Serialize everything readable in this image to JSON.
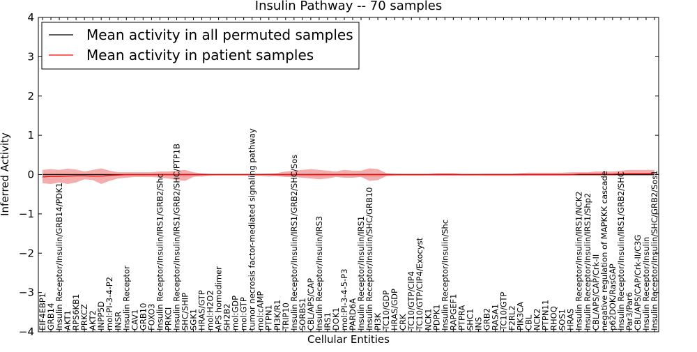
{
  "chart_data": {
    "type": "line",
    "title": "Insulin Pathway -- 70 samples",
    "xlabel": "Cellular Entities",
    "ylabel": "Inferred Activity",
    "ylim": [
      -4,
      4
    ],
    "yticks": [
      "−4",
      "−3",
      "−2",
      "−1",
      "0",
      "1",
      "2",
      "3",
      "4"
    ],
    "grid": false,
    "legend_position": "top-left",
    "legend": [
      {
        "label": "Mean activity in all permuted samples",
        "color": "#000000"
      },
      {
        "label": "Mean activity in patient samples",
        "color": "#ff0000"
      }
    ],
    "colors": {
      "patient_line": "#ff0000",
      "patient_band": "#f08080",
      "permuted_line": "#000000",
      "permuted_band": "#c0c0c0"
    },
    "categories": [
      "EIF4EBP1",
      "GRB14",
      "Insulin Receptor/Insulin/GRB14/PDK1",
      "AKT1",
      "RPS6KB1",
      "PRKCZ",
      "AKT2",
      "INPP5D",
      "mol:PI-3-4-P2",
      "INSR",
      "Insulin Receptor",
      "CAV1",
      "GRB10",
      "FOXO3",
      "Insulin Receptor/Insulin/IRS1/GRB2/Shc",
      "PRKCI",
      "Insulin Receptor/Insulin/IRS1/GRB2/SHC/PTP1B",
      "SHC/SHIP",
      "SGK1",
      "HRAS/GTP",
      "mol:H2O2",
      "APS homodimer",
      "SH2B2",
      "mol:GDP",
      "mol:GTP",
      "tumor necrosis factor-mediated signaling pathway",
      "mol:cAMP",
      "PTPN1",
      "PI3K/R1",
      "TRIP10",
      "Insulin Receptor/Insulin/IRS1/GRB2/SHC/Sos",
      "SORBS1",
      "CBL/APS/CAP",
      "Insulin Receptor/Insulin/IRS3",
      "IRS1",
      "DOK1",
      "mol:PI-3-4-5-P3",
      "PARD6A",
      "Insulin Receptor/Insulin/IRS1",
      "Insulin Receptor/Insulin/SHC/GRB10",
      "PI3K",
      "TC10/GDP",
      "HRAS/GDP",
      "CRK",
      "TC10/GTP/CIP4",
      "TC10/GTP/CIP4/Exocyst",
      "NCK1",
      "PDPK1",
      "Insulin Receptor/Insulin/Shc",
      "RAPGEF1",
      "PTPRA",
      "SHC1",
      "INS",
      "GRB2",
      "RASA1",
      "TC10/GTP",
      "F2RL2",
      "PIK3CA",
      "CBL",
      "NCK2",
      "PTPN11",
      "RHOQ",
      "SOS1",
      "HRAS",
      "Insulin Receptor/Insulin/IRS1/NCK2",
      "Insulin Receptor/Insulin/IRS1/Shp2",
      "CBL/APS/CAP/Crk-II",
      "negative regulation of MAPKKK cascade",
      "p62DOK/RasGAP",
      "Insulin Receptor/Insulin/IRS1/GRB2/SHC",
      "Par3/Par6",
      "CBL/APS/CAP/Crk-II/C3G",
      "Insulin Receptor/Insulin",
      "Insulin Receptor/Insulin/SHC/GRB2/Sos1"
    ],
    "series": [
      {
        "name": "Mean activity in patient samples",
        "values": [
          -0.06,
          -0.05,
          -0.05,
          -0.04,
          -0.03,
          -0.03,
          -0.04,
          -0.04,
          -0.02,
          -0.01,
          0.0,
          0.0,
          0.0,
          0.0,
          0.0,
          0.0,
          0.0,
          0.0,
          0.0,
          0.0,
          0.0,
          0.0,
          0.0,
          0.0,
          0.0,
          0.0,
          0.0,
          0.0,
          0.0,
          0.0,
          0.0,
          0.0,
          0.0,
          0.0,
          0.0,
          0.0,
          0.0,
          0.0,
          0.0,
          0.0,
          0.0,
          0.0,
          0.0,
          0.0,
          0.0,
          0.0,
          0.0,
          0.0,
          0.0,
          0.0,
          0.0,
          0.0,
          0.0,
          0.0,
          0.0,
          0.0,
          0.0,
          0.0,
          0.0,
          0.0,
          0.0,
          0.0,
          0.0,
          0.0,
          0.01,
          0.01,
          0.01,
          0.01,
          0.01,
          0.02,
          0.03,
          0.03,
          0.03,
          0.04
        ],
        "lower": [
          -0.22,
          -0.24,
          -0.2,
          -0.24,
          -0.2,
          -0.12,
          -0.14,
          -0.24,
          -0.16,
          -0.1,
          -0.08,
          -0.06,
          -0.06,
          -0.06,
          -0.08,
          -0.1,
          -0.14,
          -0.16,
          -0.06,
          -0.03,
          -0.02,
          -0.02,
          -0.02,
          -0.02,
          -0.02,
          -0.02,
          -0.02,
          -0.02,
          -0.04,
          -0.06,
          -0.06,
          -0.08,
          -0.1,
          -0.12,
          -0.1,
          -0.06,
          -0.08,
          -0.08,
          -0.06,
          -0.16,
          -0.14,
          -0.04,
          -0.02,
          -0.02,
          -0.02,
          -0.02,
          -0.02,
          -0.02,
          -0.02,
          -0.02,
          -0.02,
          -0.02,
          -0.02,
          -0.02,
          -0.02,
          -0.02,
          -0.02,
          -0.02,
          -0.02,
          -0.02,
          -0.02,
          -0.02,
          -0.02,
          -0.02,
          -0.02,
          -0.02,
          -0.02,
          -0.02,
          -0.02,
          -0.02,
          -0.02,
          -0.02,
          -0.02,
          -0.02
        ],
        "upper": [
          0.12,
          0.14,
          0.12,
          0.15,
          0.13,
          0.08,
          0.12,
          0.16,
          0.1,
          0.06,
          0.06,
          0.06,
          0.06,
          0.06,
          0.08,
          0.08,
          0.1,
          0.12,
          0.06,
          0.03,
          0.02,
          0.02,
          0.02,
          0.02,
          0.02,
          0.02,
          0.02,
          0.02,
          0.04,
          0.08,
          0.1,
          0.12,
          0.14,
          0.12,
          0.1,
          0.08,
          0.12,
          0.1,
          0.1,
          0.16,
          0.14,
          0.04,
          0.02,
          0.02,
          0.02,
          0.02,
          0.02,
          0.04,
          0.04,
          0.04,
          0.02,
          0.02,
          0.02,
          0.02,
          0.02,
          0.02,
          0.02,
          0.04,
          0.05,
          0.05,
          0.05,
          0.05,
          0.05,
          0.06,
          0.06,
          0.06,
          0.08,
          0.08,
          0.08,
          0.1,
          0.12,
          0.12,
          0.12,
          0.12
        ]
      },
      {
        "name": "Mean activity in all permuted samples",
        "values": [
          0,
          0,
          0,
          0,
          0,
          0,
          0,
          0,
          0,
          0,
          0,
          0,
          0,
          0,
          0,
          0,
          0,
          0,
          0,
          0,
          0,
          0,
          0,
          0,
          0,
          0,
          0,
          0,
          0,
          0,
          0,
          0,
          0,
          0,
          0,
          0,
          0,
          0,
          0,
          0,
          0,
          0,
          0,
          0,
          0,
          0,
          0,
          0,
          0,
          0,
          0,
          0,
          0,
          0,
          0,
          0,
          0,
          0,
          0,
          0,
          0,
          0,
          0,
          0,
          0,
          0,
          0,
          0,
          0,
          0,
          0,
          0,
          0,
          0
        ],
        "lower": [
          -0.06,
          -0.06,
          -0.06,
          -0.05,
          -0.05,
          -0.04,
          -0.04,
          -0.04,
          -0.04,
          -0.03,
          -0.03,
          -0.03,
          -0.03,
          -0.03,
          -0.04,
          -0.04,
          -0.05,
          -0.06,
          -0.04,
          -0.06,
          -0.03,
          -0.02,
          -0.02,
          -0.02,
          -0.02,
          -0.03,
          -0.04,
          -0.06,
          -0.04,
          -0.05,
          -0.06,
          -0.05,
          -0.05,
          -0.06,
          -0.05,
          -0.04,
          -0.05,
          -0.05,
          -0.06,
          -0.06,
          -0.06,
          -0.04,
          -0.04,
          -0.03,
          -0.03,
          -0.03,
          -0.03,
          -0.03,
          -0.03,
          -0.03,
          -0.03,
          -0.03,
          -0.03,
          -0.04,
          -0.04,
          -0.04,
          -0.04,
          -0.04,
          -0.03,
          -0.03,
          -0.03,
          -0.03,
          -0.03,
          -0.03,
          -0.03,
          -0.03,
          -0.03,
          -0.03,
          -0.03,
          -0.03,
          -0.03,
          -0.03,
          -0.03,
          -0.03
        ],
        "upper": [
          0.04,
          0.04,
          0.04,
          0.03,
          0.03,
          0.03,
          0.03,
          0.03,
          0.03,
          0.02,
          0.02,
          0.02,
          0.02,
          0.02,
          0.03,
          0.03,
          0.03,
          0.04,
          0.03,
          0.04,
          0.02,
          0.02,
          0.02,
          0.02,
          0.02,
          0.02,
          0.03,
          0.04,
          0.03,
          0.03,
          0.04,
          0.03,
          0.03,
          0.04,
          0.03,
          0.03,
          0.03,
          0.03,
          0.04,
          0.04,
          0.04,
          0.03,
          0.03,
          0.02,
          0.02,
          0.02,
          0.02,
          0.02,
          0.02,
          0.02,
          0.02,
          0.02,
          0.02,
          0.03,
          0.03,
          0.03,
          0.03,
          0.03,
          0.02,
          0.02,
          0.02,
          0.02,
          0.02,
          0.02,
          0.02,
          0.02,
          0.02,
          0.02,
          0.02,
          0.02,
          0.02,
          0.02,
          0.02,
          0.02
        ]
      }
    ]
  }
}
